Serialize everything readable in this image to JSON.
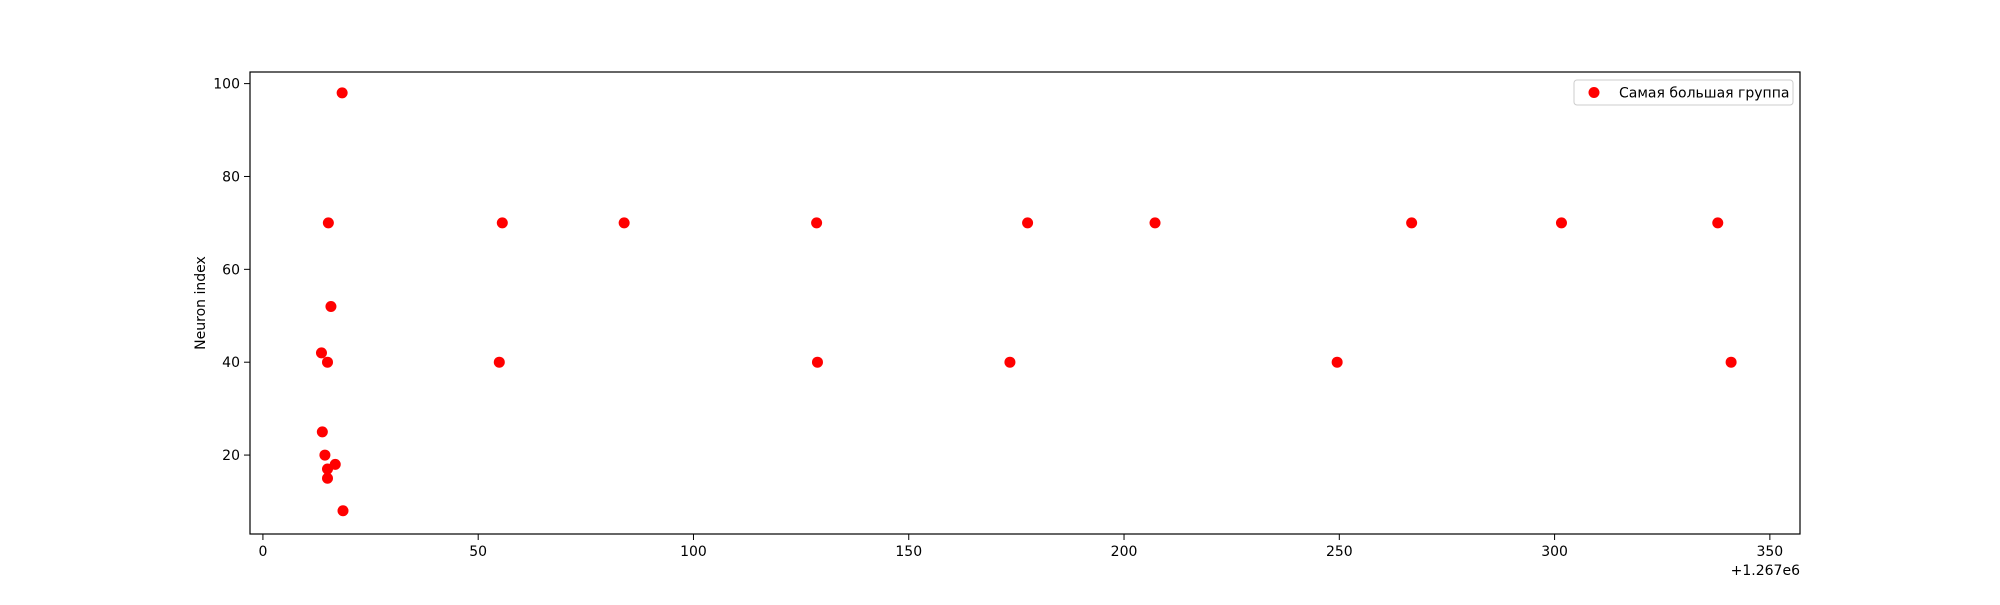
{
  "chart_data": {
    "type": "scatter",
    "title": "",
    "xlabel": "",
    "ylabel": "Neuron index",
    "x_offset_label": "+1.267e6",
    "xlim": [
      -3,
      357
    ],
    "ylim": [
      3,
      102.5
    ],
    "xticks": [
      0,
      50,
      100,
      150,
      200,
      250,
      300,
      350
    ],
    "yticks": [
      20,
      40,
      60,
      80,
      100
    ],
    "grid": false,
    "legend_position": "top-right",
    "series": [
      {
        "name": "Самая большая группа",
        "color": "#ff0000",
        "points": [
          {
            "x": 13.6,
            "y": 42
          },
          {
            "x": 13.8,
            "y": 25
          },
          {
            "x": 14.4,
            "y": 20
          },
          {
            "x": 15.0,
            "y": 17
          },
          {
            "x": 15.0,
            "y": 15
          },
          {
            "x": 15.0,
            "y": 40
          },
          {
            "x": 15.2,
            "y": 70
          },
          {
            "x": 15.8,
            "y": 52
          },
          {
            "x": 16.8,
            "y": 18
          },
          {
            "x": 18.4,
            "y": 98
          },
          {
            "x": 18.6,
            "y": 8
          },
          {
            "x": 54.9,
            "y": 40
          },
          {
            "x": 55.6,
            "y": 70
          },
          {
            "x": 83.9,
            "y": 70
          },
          {
            "x": 128.6,
            "y": 70
          },
          {
            "x": 128.8,
            "y": 40
          },
          {
            "x": 173.5,
            "y": 40
          },
          {
            "x": 177.6,
            "y": 70
          },
          {
            "x": 207.2,
            "y": 70
          },
          {
            "x": 249.5,
            "y": 40
          },
          {
            "x": 266.8,
            "y": 70
          },
          {
            "x": 301.6,
            "y": 70
          },
          {
            "x": 337.9,
            "y": 70
          },
          {
            "x": 341.0,
            "y": 40
          }
        ]
      }
    ]
  }
}
